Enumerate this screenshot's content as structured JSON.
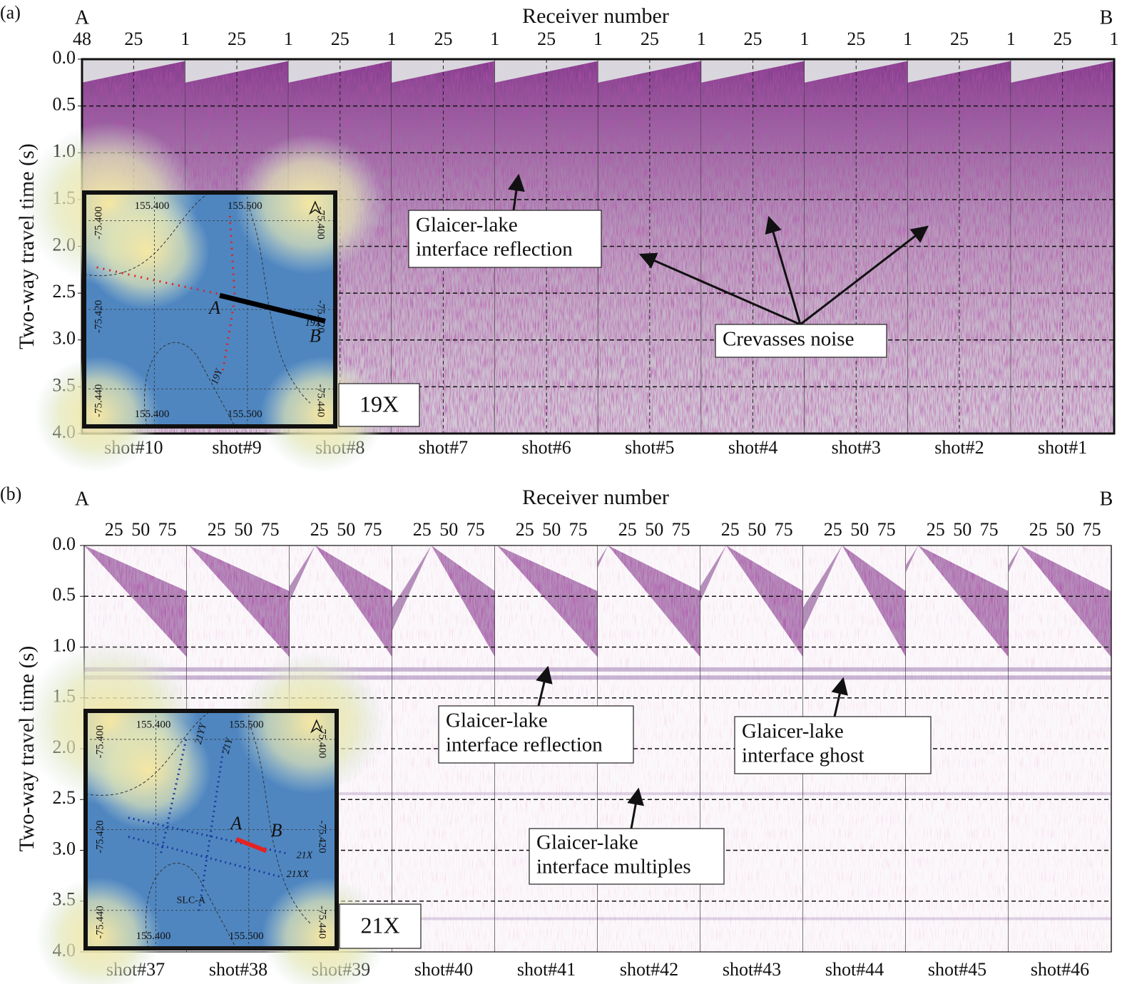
{
  "panels": [
    {
      "label": "(a)",
      "left_end": "A",
      "right_end": "B",
      "x_axis_title": "Receiver number",
      "receiver_ticks": [
        "48",
        "25",
        "1",
        "25",
        "1",
        "25",
        "1",
        "25",
        "1",
        "25",
        "1",
        "25",
        "1",
        "25",
        "1",
        "25",
        "1",
        "25",
        "1",
        "25",
        "1"
      ],
      "y_axis_title": "Two-way travel time (s)",
      "y_ticks": [
        "0.0",
        "0.5",
        "1.0",
        "1.5",
        "2.0",
        "2.5",
        "3.0",
        "3.5",
        "4.0"
      ],
      "shots": [
        "shot#10",
        "shot#9",
        "shot#8",
        "shot#7",
        "shot#6",
        "shot#5",
        "shot#4",
        "shot#3",
        "shot#2",
        "shot#1"
      ],
      "annotations": [
        {
          "lines": [
            "Glaicer-lake",
            "interface reflection"
          ]
        },
        {
          "lines": [
            "Crevasses noise"
          ]
        }
      ],
      "line_label": "19X",
      "map": {
        "lon_top": [
          "155.400",
          "155.500"
        ],
        "lon_bottom": [
          "155.400",
          "155.500"
        ],
        "lat_left": [
          "-75.400",
          "-75.420",
          "-75.440"
        ],
        "lat_right": [
          "-75.400",
          "-75.420",
          "-75.440"
        ],
        "point_labels": [
          "A",
          "B"
        ],
        "line_labels": [
          "19X",
          "19Y"
        ]
      }
    },
    {
      "label": "(b)",
      "left_end": "A",
      "right_end": "B",
      "x_axis_title": "Receiver number",
      "receiver_ticks": [
        "25",
        "50",
        "75",
        "25",
        "50",
        "75",
        "25",
        "50",
        "75",
        "25",
        "50",
        "75",
        "25",
        "50",
        "75",
        "25",
        "50",
        "75",
        "25",
        "50",
        "75",
        "25",
        "50",
        "75",
        "25",
        "50",
        "75",
        "25",
        "50",
        "75"
      ],
      "y_axis_title": "Two-way travel time (s)",
      "y_ticks": [
        "0.0",
        "0.5",
        "1.0",
        "1.5",
        "2.0",
        "2.5",
        "3.0",
        "3.5",
        "4.0"
      ],
      "shots": [
        "shot#37",
        "shot#38",
        "shot#39",
        "shot#40",
        "shot#41",
        "shot#42",
        "shot#43",
        "shot#44",
        "shot#45",
        "shot#46"
      ],
      "annotations": [
        {
          "lines": [
            "Glaicer-lake",
            "interface reflection"
          ]
        },
        {
          "lines": [
            "Glaicer-lake",
            "interface ghost"
          ]
        },
        {
          "lines": [
            "Glaicer-lake",
            "interface multiples"
          ]
        }
      ],
      "line_label": "21X",
      "map": {
        "lon_top": [
          "155.400",
          "155.500"
        ],
        "lon_bottom": [
          "155.400",
          "155.500"
        ],
        "lat_left": [
          "-75.400",
          "-75.420",
          "-75.440"
        ],
        "lat_right": [
          "-75.400",
          "-75.420",
          "-75.440"
        ],
        "point_labels": [
          "A",
          "B"
        ],
        "line_labels": [
          "21YY",
          "21Y",
          "21X",
          "21XX"
        ],
        "site": "SLC-A"
      }
    }
  ]
}
